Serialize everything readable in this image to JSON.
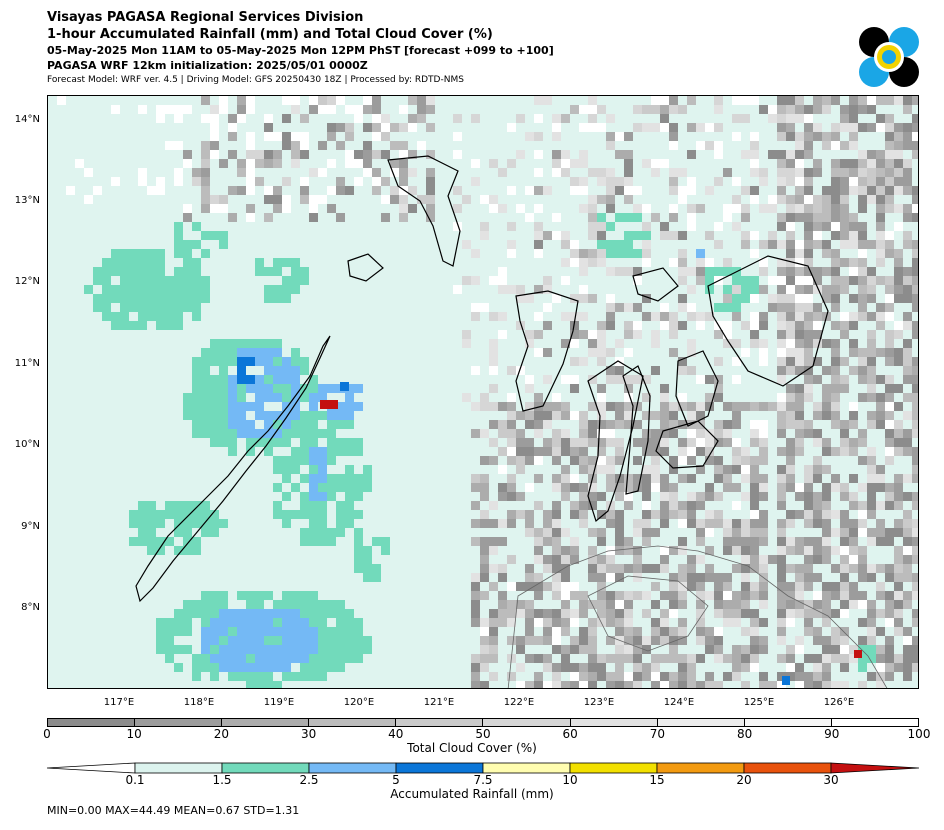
{
  "header": {
    "line1": "Visayas PAGASA Regional Services Division",
    "line2": "1-hour Accumulated Rainfall (mm) and Total Cloud Cover (%)",
    "line3": "05-May-2025 Mon 11AM to 05-May-2025 Mon 12PM PhST [forecast +099 to +100]",
    "line4": "PAGASA WRF 12km initialization: 2025/05/01 0000Z",
    "line5": "Forecast Model: WRF ver. 4.5 | Driving Model: GFS 20250430 18Z | Processed by: RDTD-NMS"
  },
  "logo": {
    "icon": "pagasa-logo-icon",
    "colors": [
      "#000000",
      "#1aa6e6",
      "#f2d200"
    ]
  },
  "map": {
    "lat_labels": [
      "14°N",
      "13°N",
      "12°N",
      "11°N",
      "10°N",
      "9°N",
      "8°N"
    ],
    "lon_labels": [
      "117°E",
      "118°E",
      "119°E",
      "120°E",
      "121°E",
      "122°E",
      "123°E",
      "124°E",
      "125°E",
      "126°E"
    ],
    "lat_range": [
      7.0,
      14.3
    ],
    "lon_range": [
      116.0,
      127.0
    ]
  },
  "cloud_colorbar": {
    "ticks": [
      "0",
      "10",
      "20",
      "30",
      "40",
      "50",
      "60",
      "70",
      "80",
      "90",
      "100"
    ],
    "colors": [
      "#8c8c8c",
      "#9c9c9c",
      "#acacac",
      "#bcbcbc",
      "#cacaca",
      "#d6d6d6",
      "#e2e2e2",
      "#ececec",
      "#f6f6f6",
      "#ffffff"
    ],
    "label": "Total Cloud Cover (%)"
  },
  "rain_colorbar": {
    "ticks": [
      "0.1",
      "1.5",
      "2.5",
      "5",
      "7.5",
      "10",
      "15",
      "20",
      "30"
    ],
    "colors": [
      "#ffffff",
      "#dcf3ee",
      "#72dabb",
      "#74b9f5",
      "#0b76d8",
      "#fffdb0",
      "#f2e000",
      "#f29a10",
      "#e8520c",
      "#c41010"
    ],
    "label": "Accumulated Rainfall (mm)"
  },
  "stats": "MIN=0.00   MAX=44.49   MEAN=0.67   STD=1.31"
}
